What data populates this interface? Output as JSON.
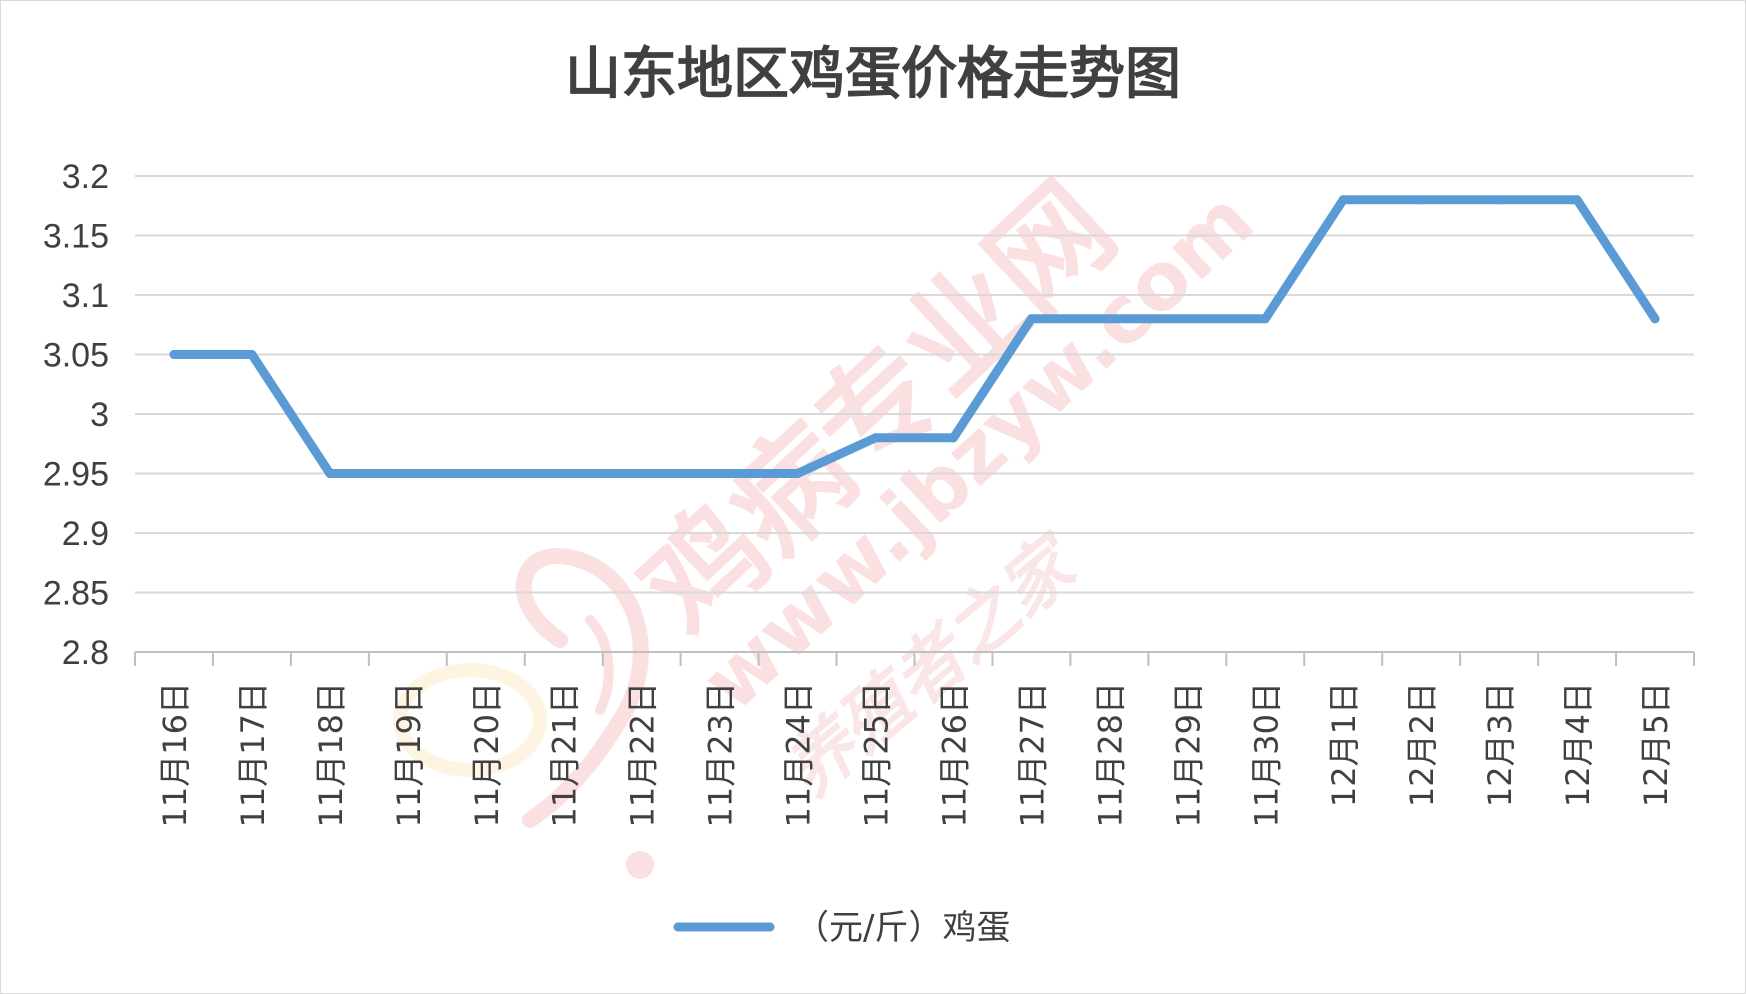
{
  "chart_data": {
    "type": "line",
    "title": "山东地区鸡蛋价格走势图",
    "categories": [
      "11月16日",
      "11月17日",
      "11月18日",
      "11月19日",
      "11月20日",
      "11月21日",
      "11月22日",
      "11月23日",
      "11月24日",
      "11月25日",
      "11月26日",
      "11月27日",
      "11月28日",
      "11月29日",
      "11月30日",
      "12月1日",
      "12月2日",
      "12月3日",
      "12月4日",
      "12月5日"
    ],
    "series": [
      {
        "name": "（元/斤）鸡蛋",
        "color": "#5b9bd5",
        "values": [
          3.05,
          3.05,
          2.95,
          2.95,
          2.95,
          2.95,
          2.95,
          2.95,
          2.95,
          2.98,
          2.98,
          3.08,
          3.08,
          3.08,
          3.08,
          3.18,
          3.18,
          3.18,
          3.18,
          3.08
        ]
      }
    ],
    "ylim": [
      2.8,
      3.2
    ],
    "yticks": [
      "2.8",
      "2.85",
      "2.9",
      "2.95",
      "3",
      "3.05",
      "3.1",
      "3.15",
      "3.2"
    ],
    "grid": true,
    "legend_position": "bottom"
  },
  "watermark": {
    "cn_name": "鸡病专业网",
    "url": "www.jbzyw.com",
    "script": "养殖者之家"
  }
}
